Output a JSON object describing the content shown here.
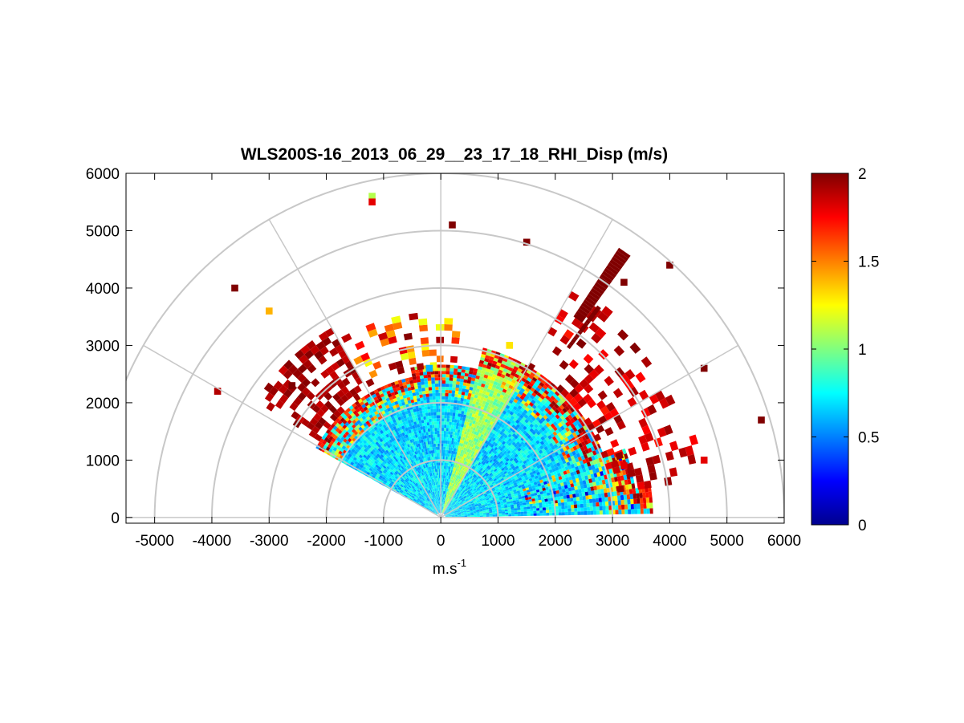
{
  "chart_data": {
    "type": "heatmap",
    "subtype": "polar RHI sector (range-height indicator)",
    "title": "WLS200S-16_2013_06_29__23_17_18_RHI_Disp (m/s)",
    "xlabel": "m.s-1",
    "xlabel_main": "m.s",
    "xlabel_sup": "-1",
    "ylabel": "",
    "xlim": [
      -5500,
      6000
    ],
    "ylim": [
      -100,
      6000
    ],
    "x_ticks": [
      -5000,
      -4000,
      -3000,
      -2000,
      -1000,
      0,
      1000,
      2000,
      3000,
      4000,
      5000,
      6000
    ],
    "y_ticks": [
      0,
      1000,
      2000,
      3000,
      4000,
      5000,
      6000
    ],
    "x_tick_labels": [
      "-5000",
      "-4000",
      "-3000",
      "-2000",
      "-1000",
      "0",
      "1000",
      "2000",
      "3000",
      "4000",
      "5000",
      "6000"
    ],
    "y_tick_labels": [
      "0",
      "1000",
      "2000",
      "3000",
      "4000",
      "5000",
      "6000"
    ],
    "polar_grid": {
      "range_rings": [
        1000,
        2000,
        3000,
        4000,
        5000,
        6000
      ],
      "spokes_deg": [
        0,
        30,
        60,
        90,
        120,
        150,
        180
      ]
    },
    "colorbar": {
      "colormap": "jet",
      "clim": [
        0,
        2
      ],
      "ticks": [
        0,
        0.5,
        1,
        1.5,
        2
      ],
      "tick_labels": [
        "0",
        "0.5",
        "1",
        "1.5",
        "2"
      ]
    },
    "sector_deg": [
      0,
      150
    ],
    "core_range_m": 3000,
    "summary_bands": [
      {
        "azimuth_deg": [
          2,
          20
        ],
        "range_m": [
          0,
          3200
        ],
        "value": 0.75
      },
      {
        "azimuth_deg": [
          20,
          58
        ],
        "range_m": [
          0,
          3100
        ],
        "value": 0.7
      },
      {
        "azimuth_deg": [
          58,
          75
        ],
        "range_m": [
          0,
          3100
        ],
        "value": 1.1
      },
      {
        "azimuth_deg": [
          75,
          100
        ],
        "range_m": [
          0,
          2600
        ],
        "value": 0.65
      },
      {
        "azimuth_deg": [
          100,
          150
        ],
        "range_m": [
          0,
          2500
        ],
        "value": 0.7
      },
      {
        "azimuth_deg": [
          120,
          148
        ],
        "range_m": [
          2500,
          3800
        ],
        "value": 2.0
      },
      {
        "azimuth_deg": [
          35,
          60
        ],
        "range_m": [
          3000,
          4100
        ],
        "value": 2.0
      }
    ],
    "sample_cells": [
      {
        "x": -2600,
        "y": 2300,
        "value": 2.0
      },
      {
        "x": -3900,
        "y": 2200,
        "value": 1.9
      },
      {
        "x": -3600,
        "y": 4000,
        "value": 2.0
      },
      {
        "x": -3000,
        "y": 3600,
        "value": 1.4
      },
      {
        "x": -1200,
        "y": 5600,
        "value": 1.1
      },
      {
        "x": -1200,
        "y": 5500,
        "value": 1.8
      },
      {
        "x": 200,
        "y": 5100,
        "value": 2.0
      },
      {
        "x": 1500,
        "y": 4800,
        "value": 2.0
      },
      {
        "x": 3200,
        "y": 4100,
        "value": 2.0
      },
      {
        "x": 4000,
        "y": 4400,
        "value": 2.0
      },
      {
        "x": 4600,
        "y": 2600,
        "value": 2.0
      },
      {
        "x": 5600,
        "y": 1700,
        "value": 2.0
      },
      {
        "x": 4600,
        "y": 1000,
        "value": 1.8
      },
      {
        "x": 3200,
        "y": 900,
        "value": 1.8
      },
      {
        "x": 1200,
        "y": 3000,
        "value": 1.3
      },
      {
        "x": -200,
        "y": 2600,
        "value": 0.6
      }
    ]
  }
}
